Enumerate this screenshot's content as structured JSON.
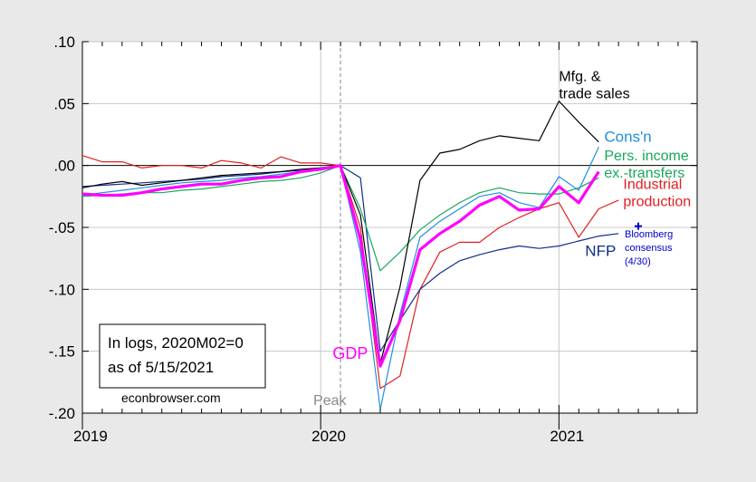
{
  "chart_data": {
    "type": "line",
    "title": "",
    "xlabel": "",
    "ylabel": "",
    "ylim": [
      -0.2,
      0.1
    ],
    "yticks": [
      ".10",
      ".05",
      ".00",
      "-.05",
      "-.10",
      "-.15",
      "-.20"
    ],
    "ytick_values": [
      0.1,
      0.05,
      0.0,
      -0.05,
      -0.1,
      -0.15,
      -0.2
    ],
    "xticks": [
      "2019",
      "2020",
      "2021"
    ],
    "xtick_values": [
      2019.0,
      2020.0,
      2021.0
    ],
    "xlim": [
      2019.0,
      2021.58
    ],
    "grid": true,
    "peak": {
      "label": "Peak",
      "x": 2020.083
    },
    "note": {
      "line1": "In logs, 2020M02=0",
      "line2": "as of 5/15/2021",
      "source": "econbrowser.com"
    },
    "series": [
      {
        "name": "Mfg. & trade sales",
        "label_lines": [
          "Mfg. &",
          "trade sales"
        ],
        "color": "#000000",
        "width": 1.2,
        "points": [
          [
            2019.0,
            -0.018
          ],
          [
            2019.083,
            -0.015
          ],
          [
            2019.167,
            -0.013
          ],
          [
            2019.25,
            -0.016
          ],
          [
            2019.333,
            -0.014
          ],
          [
            2019.417,
            -0.012
          ],
          [
            2019.5,
            -0.01
          ],
          [
            2019.583,
            -0.008
          ],
          [
            2019.667,
            -0.007
          ],
          [
            2019.75,
            -0.006
          ],
          [
            2019.833,
            -0.005
          ],
          [
            2019.917,
            -0.003
          ],
          [
            2020.0,
            -0.002
          ],
          [
            2020.083,
            0.0
          ],
          [
            2020.167,
            -0.04
          ],
          [
            2020.25,
            -0.16
          ],
          [
            2020.333,
            -0.098
          ],
          [
            2020.417,
            -0.012
          ],
          [
            2020.5,
            0.01
          ],
          [
            2020.583,
            0.013
          ],
          [
            2020.667,
            0.02
          ],
          [
            2020.75,
            0.024
          ],
          [
            2020.833,
            0.022
          ],
          [
            2020.917,
            0.02
          ],
          [
            2021.0,
            0.052
          ],
          [
            2021.083,
            0.035
          ],
          [
            2021.167,
            0.019
          ]
        ]
      },
      {
        "name": "Cons'n",
        "label_lines": [
          "Cons'n"
        ],
        "color": "#1f8fe0",
        "width": 1.2,
        "points": [
          [
            2019.0,
            -0.024
          ],
          [
            2019.083,
            -0.022
          ],
          [
            2019.167,
            -0.02
          ],
          [
            2019.25,
            -0.018
          ],
          [
            2019.333,
            -0.016
          ],
          [
            2019.417,
            -0.014
          ],
          [
            2019.5,
            -0.013
          ],
          [
            2019.583,
            -0.012
          ],
          [
            2019.667,
            -0.01
          ],
          [
            2019.75,
            -0.009
          ],
          [
            2019.833,
            -0.007
          ],
          [
            2019.917,
            -0.005
          ],
          [
            2020.0,
            -0.003
          ],
          [
            2020.083,
            0.0
          ],
          [
            2020.167,
            -0.07
          ],
          [
            2020.25,
            -0.197
          ],
          [
            2020.333,
            -0.12
          ],
          [
            2020.417,
            -0.058
          ],
          [
            2020.5,
            -0.045
          ],
          [
            2020.583,
            -0.035
          ],
          [
            2020.667,
            -0.025
          ],
          [
            2020.75,
            -0.022
          ],
          [
            2020.833,
            -0.03
          ],
          [
            2020.917,
            -0.034
          ],
          [
            2021.0,
            -0.009
          ],
          [
            2021.083,
            -0.02
          ],
          [
            2021.167,
            0.015
          ]
        ]
      },
      {
        "name": "Pers. income ex.-transfers",
        "label_lines": [
          "Pers. income",
          "ex.-transfers"
        ],
        "color": "#16a85a",
        "width": 1.2,
        "points": [
          [
            2019.0,
            -0.025
          ],
          [
            2019.083,
            -0.024
          ],
          [
            2019.167,
            -0.023
          ],
          [
            2019.25,
            -0.022
          ],
          [
            2019.333,
            -0.022
          ],
          [
            2019.417,
            -0.02
          ],
          [
            2019.5,
            -0.019
          ],
          [
            2019.583,
            -0.017
          ],
          [
            2019.667,
            -0.015
          ],
          [
            2019.75,
            -0.013
          ],
          [
            2019.833,
            -0.012
          ],
          [
            2019.917,
            -0.01
          ],
          [
            2020.0,
            -0.006
          ],
          [
            2020.083,
            0.0
          ],
          [
            2020.167,
            -0.035
          ],
          [
            2020.25,
            -0.085
          ],
          [
            2020.333,
            -0.07
          ],
          [
            2020.417,
            -0.052
          ],
          [
            2020.5,
            -0.04
          ],
          [
            2020.583,
            -0.03
          ],
          [
            2020.667,
            -0.022
          ],
          [
            2020.75,
            -0.018
          ],
          [
            2020.833,
            -0.022
          ],
          [
            2020.917,
            -0.023
          ],
          [
            2021.0,
            -0.023
          ],
          [
            2021.083,
            -0.018
          ],
          [
            2021.167,
            -0.01
          ]
        ]
      },
      {
        "name": "Industrial production",
        "label_lines": [
          "Industrial",
          "production"
        ],
        "color": "#e02020",
        "width": 1.2,
        "points": [
          [
            2019.0,
            0.008
          ],
          [
            2019.083,
            0.003
          ],
          [
            2019.167,
            0.003
          ],
          [
            2019.25,
            -0.002
          ],
          [
            2019.333,
            0.0
          ],
          [
            2019.417,
            0.0
          ],
          [
            2019.5,
            -0.002
          ],
          [
            2019.583,
            0.004
          ],
          [
            2019.667,
            0.002
          ],
          [
            2019.75,
            -0.002
          ],
          [
            2019.833,
            0.007
          ],
          [
            2019.917,
            0.002
          ],
          [
            2020.0,
            0.002
          ],
          [
            2020.083,
            0.0
          ],
          [
            2020.167,
            -0.05
          ],
          [
            2020.25,
            -0.18
          ],
          [
            2020.333,
            -0.17
          ],
          [
            2020.417,
            -0.1
          ],
          [
            2020.5,
            -0.07
          ],
          [
            2020.583,
            -0.062
          ],
          [
            2020.667,
            -0.062
          ],
          [
            2020.75,
            -0.05
          ],
          [
            2020.833,
            -0.042
          ],
          [
            2020.917,
            -0.035
          ],
          [
            2021.0,
            -0.03
          ],
          [
            2021.083,
            -0.058
          ],
          [
            2021.167,
            -0.035
          ],
          [
            2021.25,
            -0.028
          ]
        ]
      },
      {
        "name": "NFP",
        "label_lines": [
          "NFP"
        ],
        "color": "#0d2f8a",
        "width": 1.2,
        "points": [
          [
            2019.0,
            -0.017
          ],
          [
            2019.083,
            -0.016
          ],
          [
            2019.167,
            -0.015
          ],
          [
            2019.25,
            -0.014
          ],
          [
            2019.333,
            -0.013
          ],
          [
            2019.417,
            -0.012
          ],
          [
            2019.5,
            -0.011
          ],
          [
            2019.583,
            -0.009
          ],
          [
            2019.667,
            -0.008
          ],
          [
            2019.75,
            -0.007
          ],
          [
            2019.833,
            -0.005
          ],
          [
            2019.917,
            -0.004
          ],
          [
            2020.0,
            -0.002
          ],
          [
            2020.083,
            0.0
          ],
          [
            2020.167,
            -0.01
          ],
          [
            2020.25,
            -0.15
          ],
          [
            2020.333,
            -0.125
          ],
          [
            2020.417,
            -0.1
          ],
          [
            2020.5,
            -0.087
          ],
          [
            2020.583,
            -0.077
          ],
          [
            2020.667,
            -0.072
          ],
          [
            2020.75,
            -0.068
          ],
          [
            2020.833,
            -0.065
          ],
          [
            2020.917,
            -0.067
          ],
          [
            2021.0,
            -0.065
          ],
          [
            2021.083,
            -0.061
          ],
          [
            2021.167,
            -0.057
          ],
          [
            2021.25,
            -0.055
          ]
        ]
      },
      {
        "name": "GDP",
        "label_lines": [
          "GDP"
        ],
        "color": "#ff00ff",
        "width": 3.2,
        "points": [
          [
            2019.0,
            -0.023
          ],
          [
            2019.083,
            -0.024
          ],
          [
            2019.167,
            -0.024
          ],
          [
            2019.25,
            -0.022
          ],
          [
            2019.333,
            -0.019
          ],
          [
            2019.417,
            -0.017
          ],
          [
            2019.5,
            -0.015
          ],
          [
            2019.583,
            -0.015
          ],
          [
            2019.667,
            -0.012
          ],
          [
            2019.75,
            -0.01
          ],
          [
            2019.833,
            -0.009
          ],
          [
            2019.917,
            -0.005
          ],
          [
            2020.0,
            -0.003
          ],
          [
            2020.083,
            0.0
          ],
          [
            2020.167,
            -0.06
          ],
          [
            2020.25,
            -0.162
          ],
          [
            2020.333,
            -0.125
          ],
          [
            2020.417,
            -0.068
          ],
          [
            2020.5,
            -0.055
          ],
          [
            2020.583,
            -0.045
          ],
          [
            2020.667,
            -0.032
          ],
          [
            2020.75,
            -0.025
          ],
          [
            2020.833,
            -0.036
          ],
          [
            2020.917,
            -0.035
          ],
          [
            2021.0,
            -0.017
          ],
          [
            2021.083,
            -0.03
          ],
          [
            2021.167,
            -0.005
          ]
        ]
      }
    ],
    "bloomberg": {
      "label_lines": [
        "Bloomberg",
        "consensus",
        "(4/30)"
      ],
      "marker": "+",
      "color": "#0000cc",
      "x": 2021.333,
      "y": -0.049
    },
    "label_positions": {
      "Mfg. & trade sales": [
        2021.0,
        0.068
      ],
      "Cons'n": [
        2021.19,
        0.019
      ],
      "Pers. income ex.-transfers": [
        2021.19,
        0.004
      ],
      "Industrial production": [
        2021.27,
        -0.019
      ],
      "NFP": [
        2021.11,
        -0.073
      ],
      "GDP": [
        2020.05,
        -0.156
      ]
    }
  }
}
